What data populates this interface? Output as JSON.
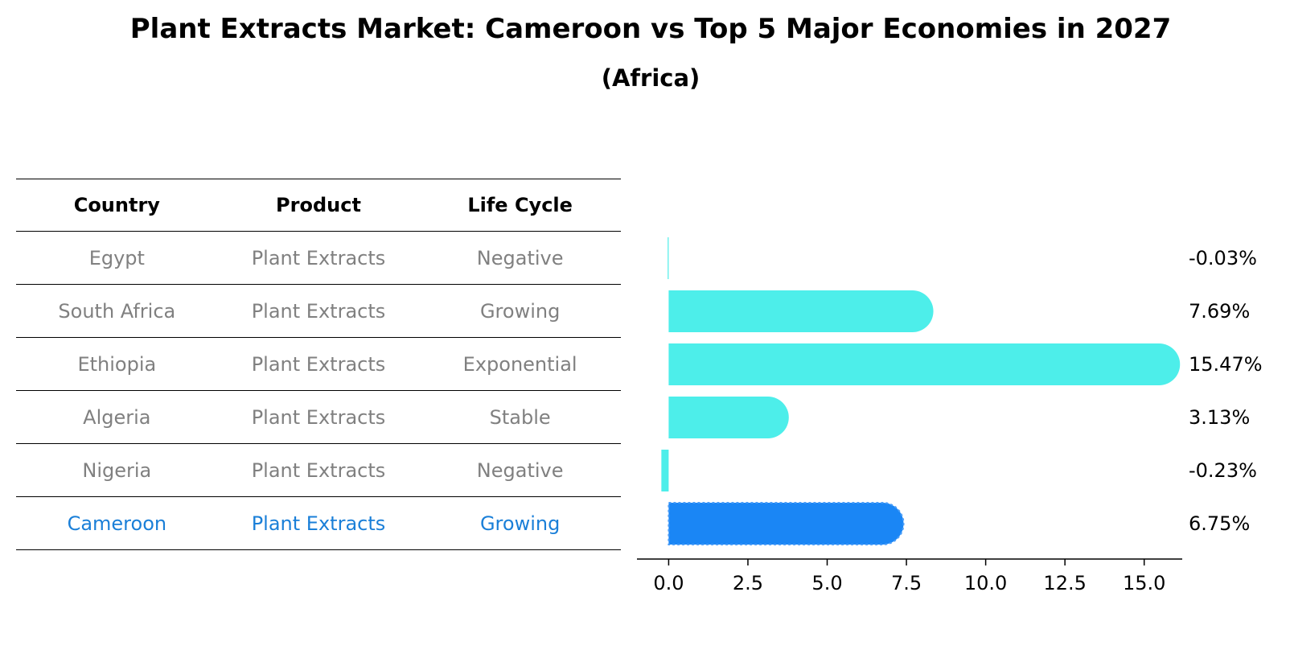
{
  "title": "Plant Extracts Market: Cameroon vs Top 5 Major Economies in 2027",
  "subtitle": "(Africa)",
  "table": {
    "headers": [
      "Country",
      "Product",
      "Life Cycle"
    ],
    "rows": [
      [
        "Egypt",
        "Plant Extracts",
        "Negative"
      ],
      [
        "South Africa",
        "Plant Extracts",
        "Growing"
      ],
      [
        "Ethiopia",
        "Plant Extracts",
        "Exponential"
      ],
      [
        "Algeria",
        "Plant Extracts",
        "Stable"
      ],
      [
        "Nigeria",
        "Plant Extracts",
        "Negative"
      ],
      [
        "Cameroon",
        "Plant Extracts",
        "Growing"
      ]
    ],
    "highlight_row": 5
  },
  "chart_data": {
    "type": "bar",
    "orientation": "horizontal",
    "categories": [
      "Egypt",
      "South Africa",
      "Ethiopia",
      "Algeria",
      "Nigeria",
      "Cameroon"
    ],
    "values": [
      -0.03,
      7.69,
      15.47,
      3.13,
      -0.23,
      6.75
    ],
    "value_labels": [
      "-0.03%",
      "7.69%",
      "15.47%",
      "3.13%",
      "-0.23%",
      "6.75%"
    ],
    "xlim": [
      -1.0,
      16.2
    ],
    "xticks": [
      0.0,
      2.5,
      5.0,
      7.5,
      10.0,
      12.5,
      15.0
    ],
    "xtick_labels": [
      "0.0",
      "2.5",
      "5.0",
      "7.5",
      "10.0",
      "12.5",
      "15.0"
    ],
    "highlight_index": 5,
    "colors": {
      "bar": "#4deeea",
      "highlight": "#1a86f5",
      "axis": "#000000"
    }
  }
}
